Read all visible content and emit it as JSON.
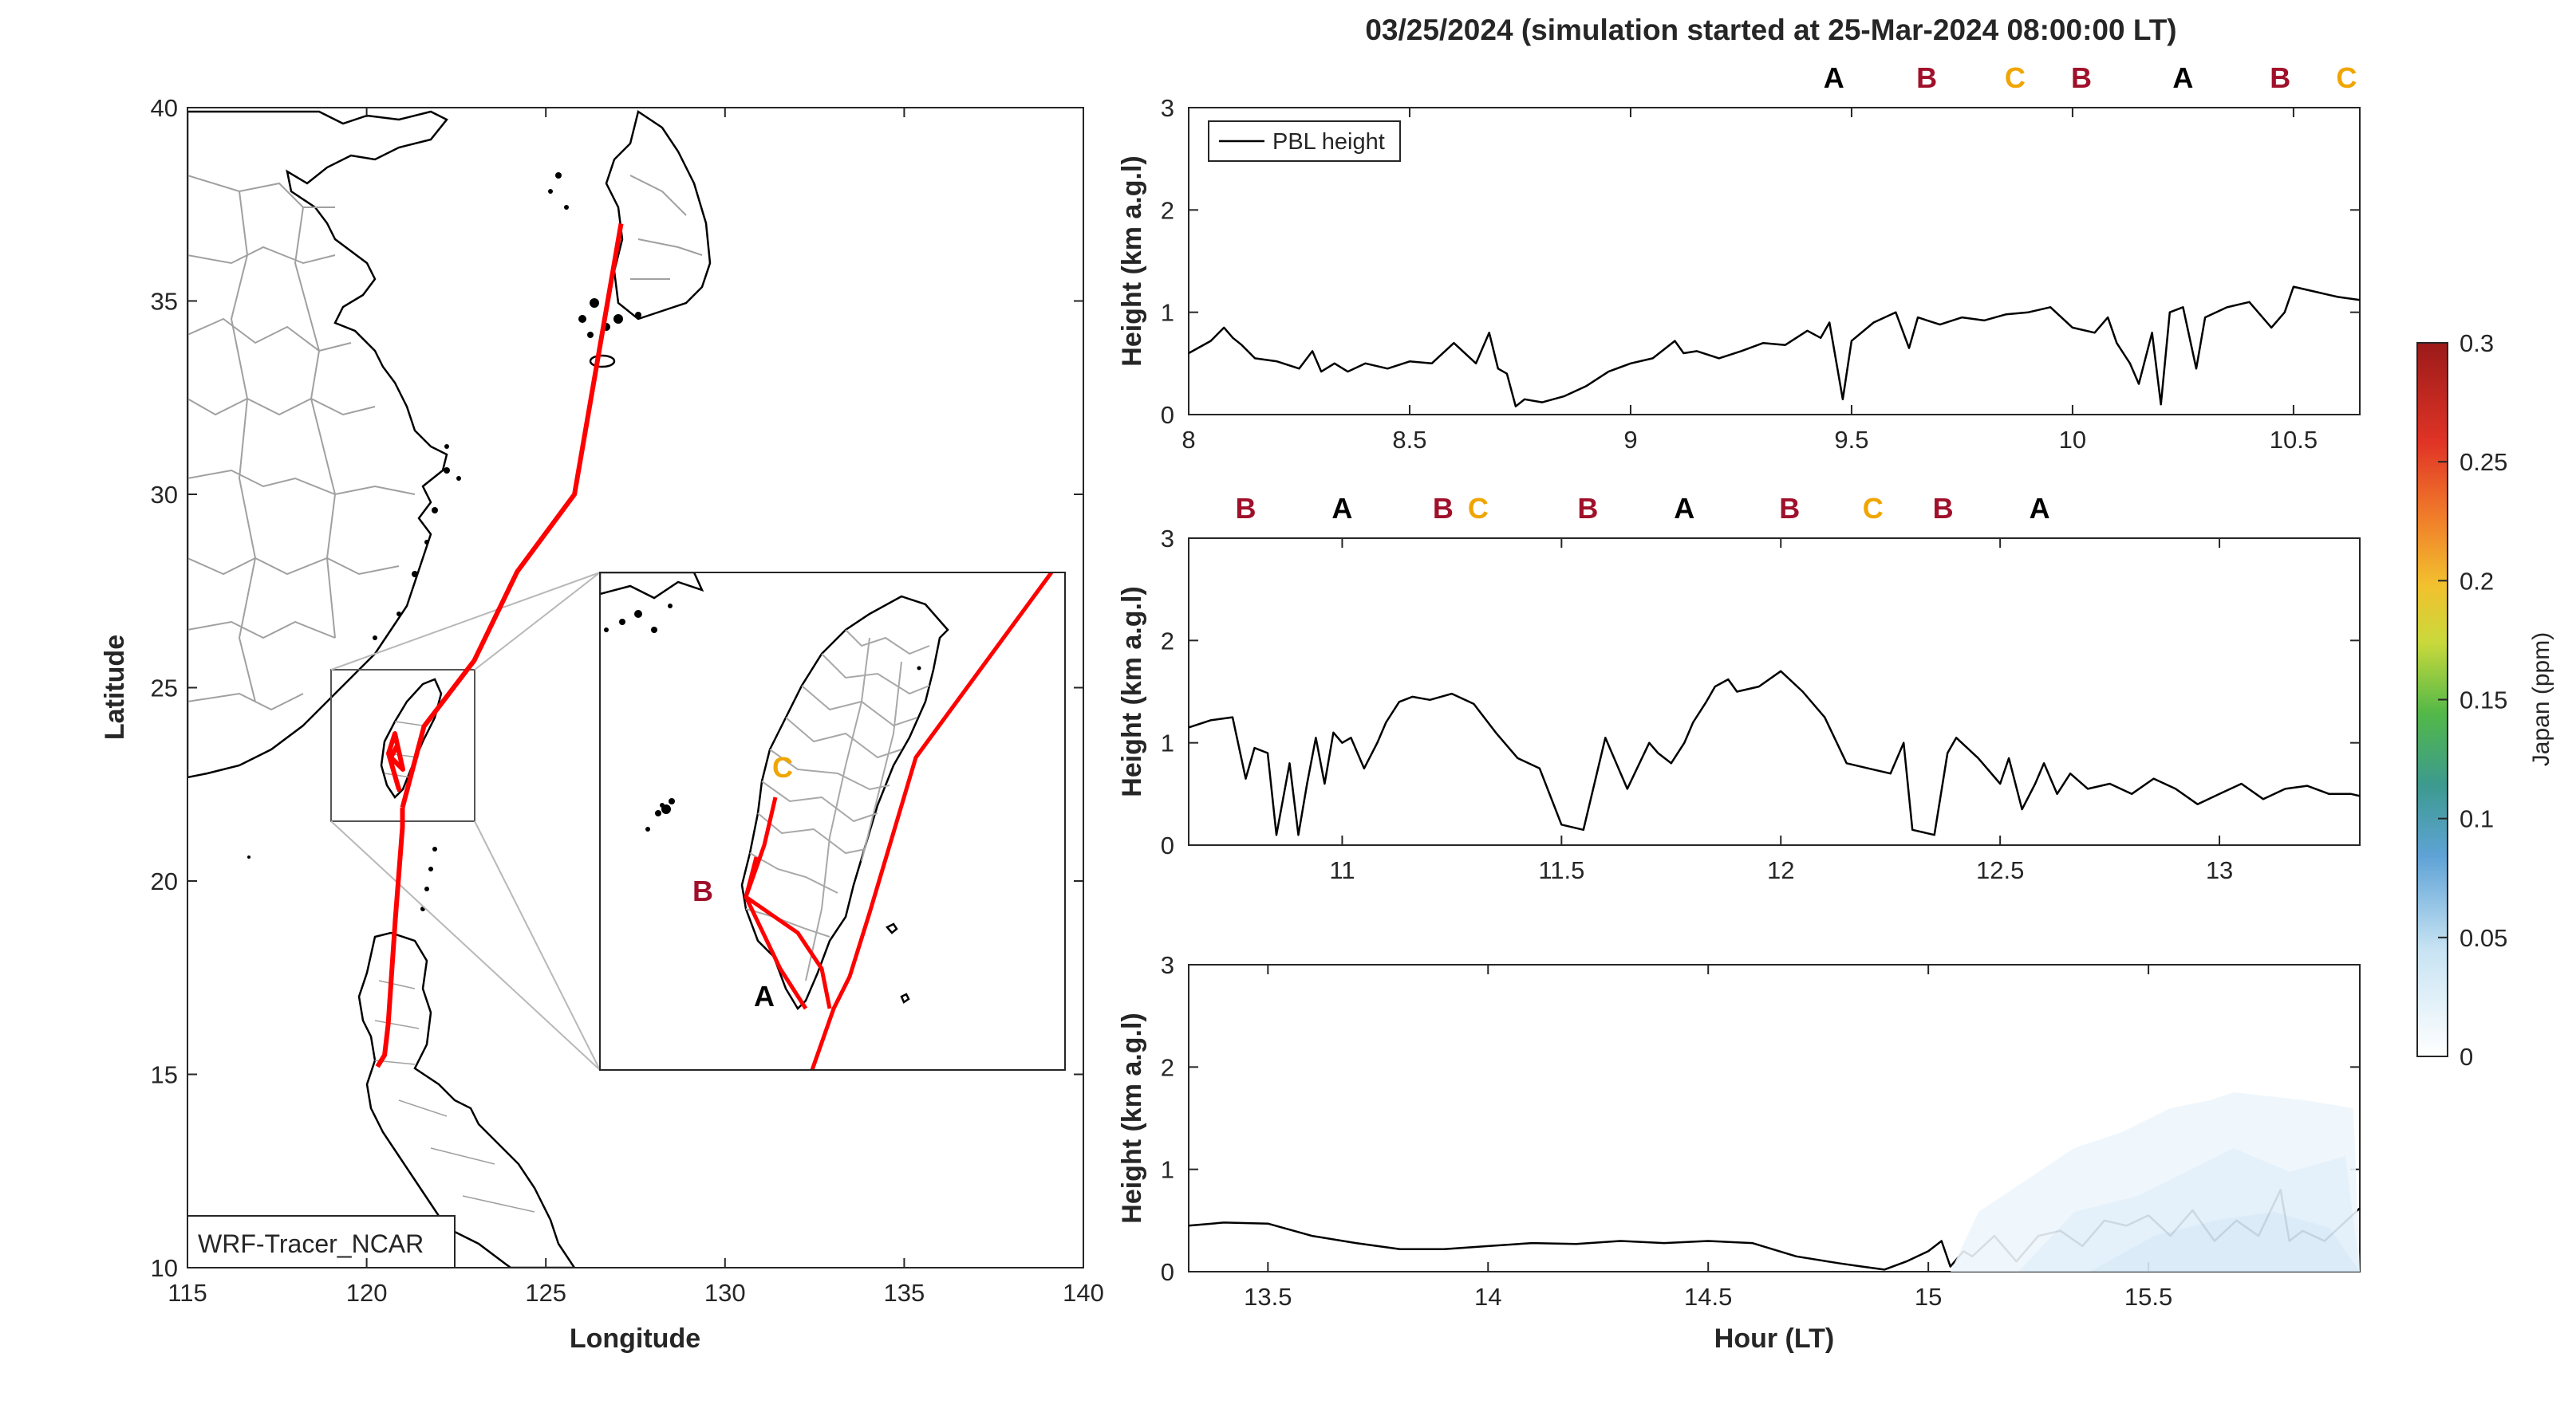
{
  "title": "03/25/2024 (simulation started at 25-Mar-2024 08:00:00 LT)",
  "map": {
    "xlabel": "Longitude",
    "ylabel": "Latitude",
    "xticks": [
      "115",
      "120",
      "125",
      "130",
      "135",
      "140"
    ],
    "yticks": [
      "10",
      "15",
      "20",
      "25",
      "30",
      "35",
      "40"
    ],
    "xlim": [
      115,
      140
    ],
    "ylim": [
      10,
      40
    ],
    "model_label": "WRF-Tracer_NCAR",
    "track_color": "#ff0000",
    "track": [
      [
        121.0,
        21.9
      ],
      [
        121.0,
        21.4
      ],
      [
        120.8,
        19.0
      ],
      [
        120.6,
        16.3
      ],
      [
        120.5,
        15.5
      ],
      [
        120.3,
        15.2
      ]
    ],
    "track_north": [
      [
        121.0,
        21.9
      ],
      [
        121.6,
        24.0
      ],
      [
        123.0,
        25.7
      ],
      [
        124.2,
        28.0
      ],
      [
        125.8,
        30.0
      ],
      [
        127.1,
        37.0
      ]
    ],
    "inset_labels": [
      {
        "text": "C",
        "color": "#f0a500"
      },
      {
        "text": "B",
        "color": "#a0102a"
      },
      {
        "text": "A",
        "color": "#000000"
      }
    ]
  },
  "colorbar": {
    "label": "Japan (ppm)",
    "ticks": [
      "0",
      "0.05",
      "0.1",
      "0.15",
      "0.2",
      "0.25",
      "0.3"
    ],
    "range": [
      0,
      0.3
    ]
  },
  "legend": {
    "pbl": "PBL height"
  },
  "panels": [
    {
      "ylabel": "Height (km a.g.l)",
      "yticks": [
        "0",
        "1",
        "2",
        "3"
      ],
      "xticks": [
        "8",
        "8.5",
        "9",
        "9.5",
        "10",
        "10.5"
      ],
      "xlim": [
        8,
        10.65
      ],
      "markers": [
        {
          "text": "A",
          "x": 9.46,
          "color": "#000000"
        },
        {
          "text": "B",
          "x": 9.67,
          "color": "#a0102a"
        },
        {
          "text": "C",
          "x": 9.87,
          "color": "#f0a500"
        },
        {
          "text": "B",
          "x": 10.02,
          "color": "#a0102a"
        },
        {
          "text": "A",
          "x": 10.25,
          "color": "#000000"
        },
        {
          "text": "B",
          "x": 10.47,
          "color": "#a0102a"
        },
        {
          "text": "C",
          "x": 10.62,
          "color": "#f0a500"
        }
      ]
    },
    {
      "ylabel": "Height (km a.g.l)",
      "yticks": [
        "0",
        "1",
        "2",
        "3"
      ],
      "xticks": [
        "11",
        "11.5",
        "12",
        "12.5",
        "13"
      ],
      "xlim": [
        10.65,
        13.32
      ],
      "markers": [
        {
          "text": "B",
          "x": 10.78,
          "color": "#a0102a"
        },
        {
          "text": "A",
          "x": 11.0,
          "color": "#000000"
        },
        {
          "text": "B",
          "x": 11.23,
          "color": "#a0102a"
        },
        {
          "text": "C",
          "x": 11.31,
          "color": "#f0a500"
        },
        {
          "text": "B",
          "x": 11.56,
          "color": "#a0102a"
        },
        {
          "text": "A",
          "x": 11.78,
          "color": "#000000"
        },
        {
          "text": "B",
          "x": 12.02,
          "color": "#a0102a"
        },
        {
          "text": "C",
          "x": 12.21,
          "color": "#f0a500"
        },
        {
          "text": "B",
          "x": 12.37,
          "color": "#a0102a"
        },
        {
          "text": "A",
          "x": 12.59,
          "color": "#000000"
        }
      ]
    },
    {
      "ylabel": "Height (km a.g.l)",
      "yticks": [
        "0",
        "1",
        "2",
        "3"
      ],
      "xticks": [
        "13.5",
        "14",
        "14.5",
        "15",
        "15.5"
      ],
      "xlim": [
        13.32,
        15.98
      ],
      "xlabel": "Hour (LT)",
      "markers": []
    }
  ],
  "chart_data": [
    {
      "type": "line",
      "title": "03/25/2024 (simulation started at 25-Mar-2024 08:00:00 LT)",
      "xlabel": "",
      "ylabel": "Height (km a.g.l)",
      "xlim": [
        8,
        10.65
      ],
      "ylim": [
        0,
        3
      ],
      "series": [
        {
          "name": "PBL height",
          "x": [
            8.0,
            8.05,
            8.08,
            8.1,
            8.12,
            8.15,
            8.2,
            8.25,
            8.28,
            8.3,
            8.33,
            8.36,
            8.4,
            8.45,
            8.5,
            8.55,
            8.6,
            8.65,
            8.68,
            8.7,
            8.72,
            8.74,
            8.76,
            8.8,
            8.85,
            8.9,
            8.95,
            9.0,
            9.05,
            9.1,
            9.12,
            9.15,
            9.2,
            9.25,
            9.3,
            9.35,
            9.4,
            9.43,
            9.45,
            9.48,
            9.5,
            9.55,
            9.6,
            9.63,
            9.65,
            9.7,
            9.75,
            9.8,
            9.85,
            9.9,
            9.95,
            10.0,
            10.05,
            10.08,
            10.1,
            10.13,
            10.15,
            10.18,
            10.2,
            10.22,
            10.25,
            10.28,
            10.3,
            10.35,
            10.4,
            10.45,
            10.48,
            10.5,
            10.55,
            10.6,
            10.65
          ],
          "y": [
            0.6,
            0.72,
            0.85,
            0.75,
            0.68,
            0.55,
            0.52,
            0.45,
            0.62,
            0.42,
            0.5,
            0.42,
            0.5,
            0.45,
            0.52,
            0.5,
            0.7,
            0.5,
            0.8,
            0.45,
            0.4,
            0.08,
            0.15,
            0.12,
            0.18,
            0.28,
            0.42,
            0.5,
            0.55,
            0.72,
            0.6,
            0.62,
            0.55,
            0.62,
            0.7,
            0.68,
            0.82,
            0.75,
            0.9,
            0.15,
            0.72,
            0.9,
            1.0,
            0.65,
            0.95,
            0.88,
            0.95,
            0.92,
            0.98,
            1.0,
            1.05,
            0.85,
            0.8,
            0.95,
            0.7,
            0.5,
            0.3,
            0.8,
            0.1,
            1.0,
            1.05,
            0.45,
            0.95,
            1.05,
            1.1,
            0.85,
            1.0,
            1.25,
            1.2,
            1.15,
            1.12
          ]
        }
      ]
    },
    {
      "type": "line",
      "ylabel": "Height (km a.g.l)",
      "xlim": [
        10.65,
        13.32
      ],
      "ylim": [
        0,
        3
      ],
      "series": [
        {
          "name": "PBL height",
          "x": [
            10.65,
            10.7,
            10.75,
            10.78,
            10.8,
            10.83,
            10.85,
            10.88,
            10.9,
            10.92,
            10.94,
            10.96,
            10.98,
            11.0,
            11.02,
            11.05,
            11.08,
            11.1,
            11.13,
            11.16,
            11.2,
            11.25,
            11.3,
            11.35,
            11.4,
            11.45,
            11.5,
            11.55,
            11.6,
            11.65,
            11.7,
            11.72,
            11.75,
            11.78,
            11.8,
            11.83,
            11.85,
            11.88,
            11.9,
            11.95,
            12.0,
            12.05,
            12.08,
            12.1,
            12.15,
            12.2,
            12.25,
            12.28,
            12.3,
            12.35,
            12.38,
            12.4,
            12.45,
            12.5,
            12.52,
            12.55,
            12.58,
            12.6,
            12.63,
            12.66,
            12.7,
            12.75,
            12.8,
            12.85,
            12.9,
            12.95,
            13.0,
            13.05,
            13.1,
            13.15,
            13.2,
            13.25,
            13.3,
            13.32
          ],
          "y": [
            1.15,
            1.22,
            1.25,
            0.65,
            0.95,
            0.9,
            0.1,
            0.8,
            0.1,
            0.6,
            1.05,
            0.6,
            1.1,
            1.0,
            1.05,
            0.75,
            1.0,
            1.2,
            1.4,
            1.45,
            1.42,
            1.48,
            1.38,
            1.1,
            0.85,
            0.75,
            0.2,
            0.15,
            1.05,
            0.55,
            1.0,
            0.9,
            0.8,
            1.0,
            1.2,
            1.4,
            1.55,
            1.62,
            1.5,
            1.55,
            1.7,
            1.5,
            1.35,
            1.25,
            0.8,
            0.75,
            0.7,
            1.0,
            0.15,
            0.1,
            0.9,
            1.05,
            0.85,
            0.6,
            0.85,
            0.35,
            0.6,
            0.8,
            0.5,
            0.7,
            0.55,
            0.6,
            0.5,
            0.65,
            0.55,
            0.4,
            0.5,
            0.6,
            0.45,
            0.55,
            0.58,
            0.5,
            0.5,
            0.48
          ]
        }
      ]
    },
    {
      "type": "line",
      "xlabel": "Hour (LT)",
      "ylabel": "Height (km a.g.l)",
      "xlim": [
        13.32,
        15.98
      ],
      "ylim": [
        0,
        3
      ],
      "series": [
        {
          "name": "PBL height",
          "x": [
            13.32,
            13.4,
            13.5,
            13.6,
            13.7,
            13.8,
            13.9,
            14.0,
            14.1,
            14.2,
            14.3,
            14.4,
            14.5,
            14.6,
            14.7,
            14.8,
            14.85,
            14.9,
            14.95,
            15.0,
            15.03,
            15.05,
            15.08,
            15.1,
            15.15,
            15.2,
            15.25,
            15.3,
            15.35,
            15.4,
            15.45,
            15.5,
            15.55,
            15.6,
            15.65,
            15.7,
            15.75,
            15.8,
            15.82,
            15.85,
            15.9,
            15.95,
            15.98
          ],
          "y": [
            0.45,
            0.48,
            0.47,
            0.35,
            0.28,
            0.22,
            0.22,
            0.25,
            0.28,
            0.27,
            0.3,
            0.28,
            0.3,
            0.28,
            0.15,
            0.08,
            0.05,
            0.02,
            0.1,
            0.2,
            0.3,
            0.05,
            0.2,
            0.15,
            0.35,
            0.1,
            0.35,
            0.4,
            0.25,
            0.5,
            0.45,
            0.55,
            0.35,
            0.6,
            0.3,
            0.5,
            0.35,
            0.8,
            0.3,
            0.4,
            0.3,
            0.5,
            0.62
          ]
        }
      ]
    }
  ]
}
